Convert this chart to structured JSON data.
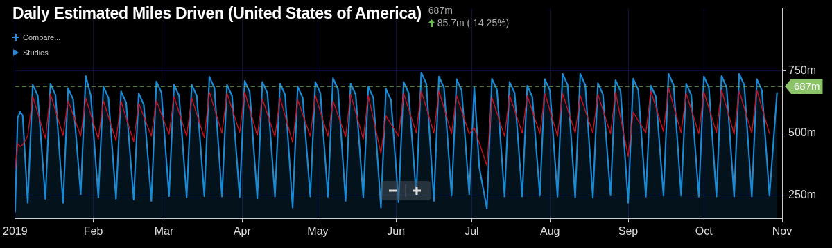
{
  "chart_data": {
    "type": "line",
    "title": "Daily Estimated Miles Driven (United States of America)",
    "annotations": [
      "687m",
      "85.7m ( 14.25%)",
      "Compare...",
      "Studies"
    ],
    "xlim": [
      "2019-01-01",
      "2019-11-01"
    ],
    "xticks": [
      {
        "value": "2019-01-01",
        "label": "2019"
      },
      {
        "value": "2019-02-01",
        "label": "Feb"
      },
      {
        "value": "2019-03-01",
        "label": "Mar"
      },
      {
        "value": "2019-04-01",
        "label": "Apr"
      },
      {
        "value": "2019-05-01",
        "label": "May"
      },
      {
        "value": "2019-06-01",
        "label": "Jun"
      },
      {
        "value": "2019-07-01",
        "label": "Jul"
      },
      {
        "value": "2019-08-01",
        "label": "Aug"
      },
      {
        "value": "2019-09-01",
        "label": "Sep"
      },
      {
        "value": "2019-10-01",
        "label": "Oct"
      },
      {
        "value": "2019-11-01",
        "label": "Nov"
      }
    ],
    "ylim": [
      156,
      1000
    ],
    "yticks": [
      {
        "value": 250,
        "label": "250m"
      },
      {
        "value": 500,
        "label": "500m"
      },
      {
        "value": 750,
        "label": "750m"
      }
    ],
    "grid": true,
    "marker": "none",
    "line_style": "solid",
    "ref_lines": [
      {
        "axis": "y",
        "value": 687,
        "label": "687m",
        "color": "#8cc26a",
        "line_style": "dashed"
      }
    ],
    "series": [
      {
        "type": "area",
        "color": "#1a8ad4",
        "x": [
          "2019-01-01",
          "2019-01-02",
          "2019-01-03",
          "2019-01-04",
          "2019-01-06",
          "2019-01-08",
          "2019-01-10",
          "2019-01-13",
          "2019-01-15",
          "2019-01-17",
          "2019-01-20",
          "2019-01-22",
          "2019-01-24",
          "2019-01-27",
          "2019-01-29",
          "2019-01-31",
          "2019-02-03",
          "2019-02-05",
          "2019-02-07",
          "2019-02-10",
          "2019-02-12",
          "2019-02-14",
          "2019-02-17",
          "2019-02-19",
          "2019-02-21",
          "2019-02-24",
          "2019-02-26",
          "2019-02-28",
          "2019-03-03",
          "2019-03-05",
          "2019-03-07",
          "2019-03-10",
          "2019-03-12",
          "2019-03-14",
          "2019-03-17",
          "2019-03-19",
          "2019-03-21",
          "2019-03-24",
          "2019-03-26",
          "2019-03-28",
          "2019-03-31",
          "2019-04-02",
          "2019-04-04",
          "2019-04-07",
          "2019-04-09",
          "2019-04-11",
          "2019-04-14",
          "2019-04-16",
          "2019-04-18",
          "2019-04-21",
          "2019-04-23",
          "2019-04-25",
          "2019-04-28",
          "2019-04-30",
          "2019-05-02",
          "2019-05-05",
          "2019-05-07",
          "2019-05-09",
          "2019-05-12",
          "2019-05-14",
          "2019-05-16",
          "2019-05-19",
          "2019-05-21",
          "2019-05-23",
          "2019-05-26",
          "2019-05-28",
          "2019-05-30",
          "2019-06-02",
          "2019-06-04",
          "2019-06-06",
          "2019-06-09",
          "2019-06-11",
          "2019-06-13",
          "2019-06-16",
          "2019-06-18",
          "2019-06-20",
          "2019-06-23",
          "2019-06-25",
          "2019-06-27",
          "2019-06-30",
          "2019-07-02",
          "2019-07-04",
          "2019-07-07",
          "2019-07-09",
          "2019-07-11",
          "2019-07-14",
          "2019-07-16",
          "2019-07-18",
          "2019-07-21",
          "2019-07-23",
          "2019-07-25",
          "2019-07-28",
          "2019-07-30",
          "2019-08-01",
          "2019-08-04",
          "2019-08-06",
          "2019-08-08",
          "2019-08-11",
          "2019-08-13",
          "2019-08-15",
          "2019-08-18",
          "2019-08-20",
          "2019-08-22",
          "2019-08-25",
          "2019-08-27",
          "2019-08-29",
          "2019-09-01",
          "2019-09-03",
          "2019-09-05",
          "2019-09-08",
          "2019-09-10",
          "2019-09-12",
          "2019-09-15",
          "2019-09-17",
          "2019-09-19",
          "2019-09-22",
          "2019-09-24",
          "2019-09-26",
          "2019-09-29",
          "2019-10-01",
          "2019-10-03",
          "2019-10-06",
          "2019-10-08",
          "2019-10-10",
          "2019-10-13",
          "2019-10-15",
          "2019-10-17",
          "2019-10-20",
          "2019-10-22",
          "2019-10-24",
          "2019-10-27",
          "2019-10-30"
        ],
        "values": [
          180,
          560,
          585,
          570,
          218,
          694,
          649,
          234,
          698,
          653,
          218,
          680,
          635,
          253,
          729,
          650,
          240,
          686,
          641,
          234,
          667,
          622,
          231,
          659,
          614,
          226,
          707,
          662,
          245,
          694,
          649,
          240,
          694,
          649,
          245,
          726,
          681,
          244,
          694,
          649,
          242,
          709,
          664,
          236,
          705,
          660,
          244,
          699,
          654,
          199,
          686,
          641,
          244,
          705,
          660,
          243,
          720,
          675,
          226,
          699,
          654,
          240,
          686,
          641,
          199,
          677,
          632,
          220,
          705,
          660,
          250,
          743,
          698,
          226,
          727,
          682,
          247,
          716,
          671,
          252,
          683,
          360,
          195,
          718,
          673,
          244,
          705,
          660,
          244,
          690,
          645,
          247,
          716,
          671,
          243,
          738,
          693,
          240,
          738,
          693,
          240,
          700,
          655,
          248,
          712,
          667,
          218,
          718,
          673,
          243,
          690,
          645,
          247,
          738,
          693,
          247,
          698,
          653,
          243,
          727,
          682,
          244,
          729,
          684,
          244,
          738,
          693,
          244,
          716,
          671,
          247,
          663
        ]
      },
      {
        "type": "line",
        "color": "#cc1020",
        "x": [
          "2019-01-01",
          "2019-01-02",
          "2019-01-03",
          "2019-01-04",
          "2019-01-06",
          "2019-01-08",
          "2019-01-13",
          "2019-01-15",
          "2019-01-20",
          "2019-01-22",
          "2019-01-27",
          "2019-01-29",
          "2019-02-03",
          "2019-02-05",
          "2019-02-10",
          "2019-02-12",
          "2019-02-17",
          "2019-02-19",
          "2019-02-24",
          "2019-02-26",
          "2019-03-03",
          "2019-03-05",
          "2019-03-10",
          "2019-03-12",
          "2019-03-17",
          "2019-03-19",
          "2019-03-24",
          "2019-03-26",
          "2019-03-31",
          "2019-04-02",
          "2019-04-07",
          "2019-04-09",
          "2019-04-14",
          "2019-04-16",
          "2019-04-21",
          "2019-04-23",
          "2019-04-28",
          "2019-04-30",
          "2019-05-05",
          "2019-05-07",
          "2019-05-12",
          "2019-05-14",
          "2019-05-19",
          "2019-05-21",
          "2019-05-26",
          "2019-05-28",
          "2019-06-02",
          "2019-06-04",
          "2019-06-09",
          "2019-06-11",
          "2019-06-16",
          "2019-06-18",
          "2019-06-23",
          "2019-06-25",
          "2019-06-30",
          "2019-07-02",
          "2019-07-07",
          "2019-07-09",
          "2019-07-14",
          "2019-07-16",
          "2019-07-21",
          "2019-07-23",
          "2019-07-28",
          "2019-07-30",
          "2019-08-04",
          "2019-08-06",
          "2019-08-11",
          "2019-08-13",
          "2019-08-18",
          "2019-08-20",
          "2019-08-25",
          "2019-08-27",
          "2019-09-01",
          "2019-09-03",
          "2019-09-08",
          "2019-09-10",
          "2019-09-15",
          "2019-09-17",
          "2019-09-22",
          "2019-09-24",
          "2019-09-29",
          "2019-10-01",
          "2019-10-06",
          "2019-10-08",
          "2019-10-13",
          "2019-10-15",
          "2019-10-20",
          "2019-10-22",
          "2019-10-27"
        ],
        "values": [
          352,
          458,
          445,
          452,
          487,
          646,
          478,
          657,
          490,
          630,
          487,
          640,
          475,
          630,
          469,
          626,
          465,
          619,
          487,
          630,
          495,
          646,
          487,
          640,
          480,
          664,
          500,
          659,
          502,
          664,
          490,
          637,
          485,
          641,
          462,
          633,
          487,
          650,
          487,
          628,
          485,
          655,
          475,
          650,
          418,
          569,
          487,
          659,
          500,
          668,
          500,
          668,
          497,
          650,
          497,
          520,
          368,
          641,
          487,
          650,
          500,
          650,
          497,
          659,
          487,
          659,
          500,
          650,
          500,
          655,
          497,
          664,
          405,
          583,
          500,
          668,
          505,
          681,
          500,
          659,
          497,
          664,
          502,
          672,
          495,
          668,
          500,
          672,
          497
        ]
      }
    ]
  }
}
